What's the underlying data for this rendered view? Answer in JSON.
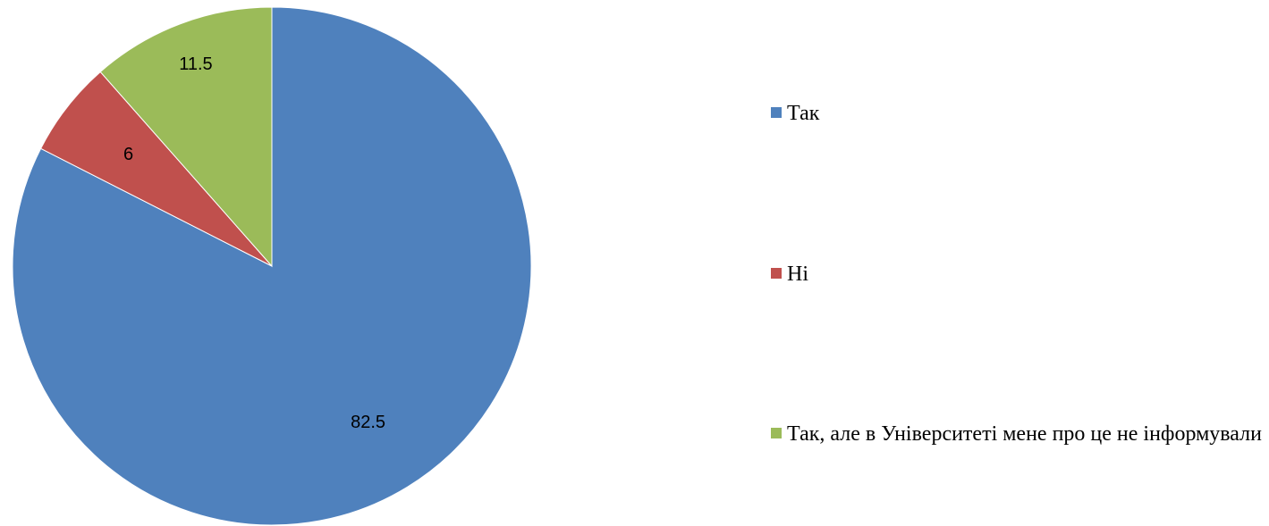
{
  "chart_data": {
    "type": "pie",
    "title": "",
    "series": [
      {
        "values": [
          82.5,
          6,
          11.5
        ]
      }
    ],
    "categories": [
      "Так",
      "Ні",
      "Так, але в Університеті мене про це не інформували"
    ],
    "data_labels": [
      "82.5",
      "6",
      "11.5"
    ],
    "colors": [
      "#4F81BD",
      "#C0504D",
      "#9BBB59"
    ],
    "start_angle_deg": 0,
    "direction": "clockwise",
    "legend_position": "right"
  },
  "legend": {
    "items": [
      {
        "label": "Так",
        "color": "#4F81BD"
      },
      {
        "label": "Ні",
        "color": "#C0504D"
      },
      {
        "label": "Так, але в Університеті мене про це не інформували",
        "color": "#9BBB59"
      }
    ]
  }
}
